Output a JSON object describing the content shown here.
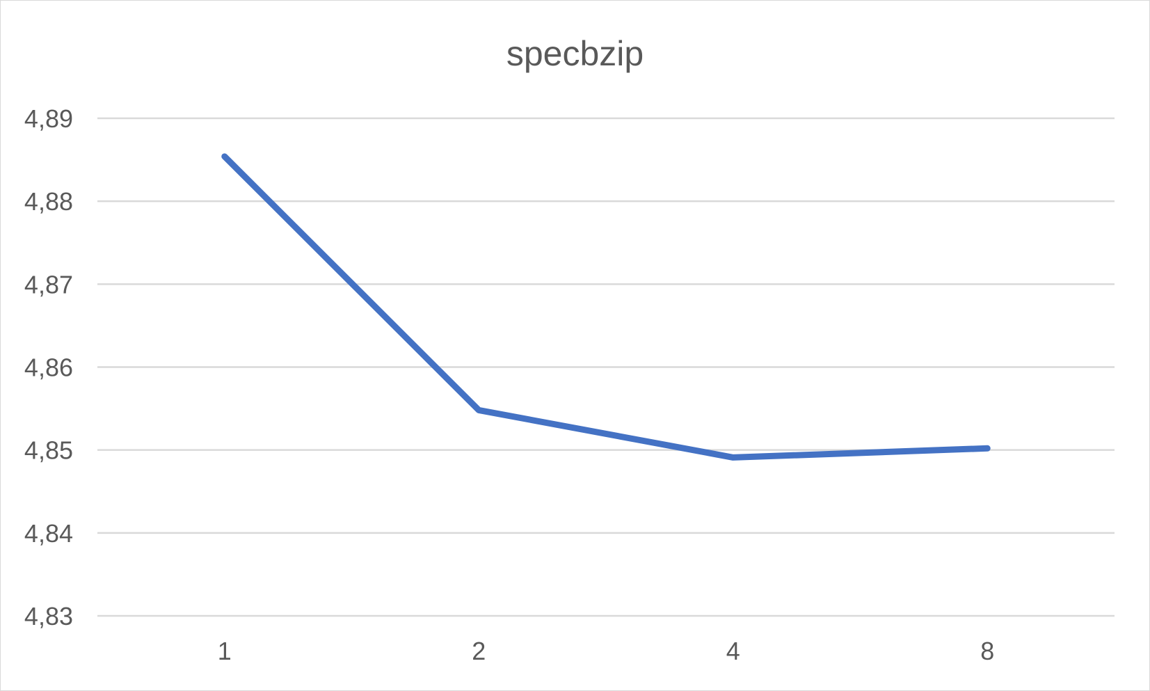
{
  "chart_data": {
    "type": "line",
    "title": "specbzip",
    "categories": [
      "1",
      "2",
      "4",
      "8"
    ],
    "series": [
      {
        "values": [
          4.8854,
          4.8548,
          4.8491,
          4.8502
        ]
      }
    ],
    "ylim": [
      4.83,
      4.89
    ],
    "y_ticks": [
      "4,83",
      "4,84",
      "4,85",
      "4,86",
      "4,87",
      "4,88",
      "4,89"
    ],
    "grid": true,
    "legend": "none",
    "colors": {
      "series": "#4472c4",
      "grid": "#d9d9d9",
      "text": "#595959"
    }
  }
}
